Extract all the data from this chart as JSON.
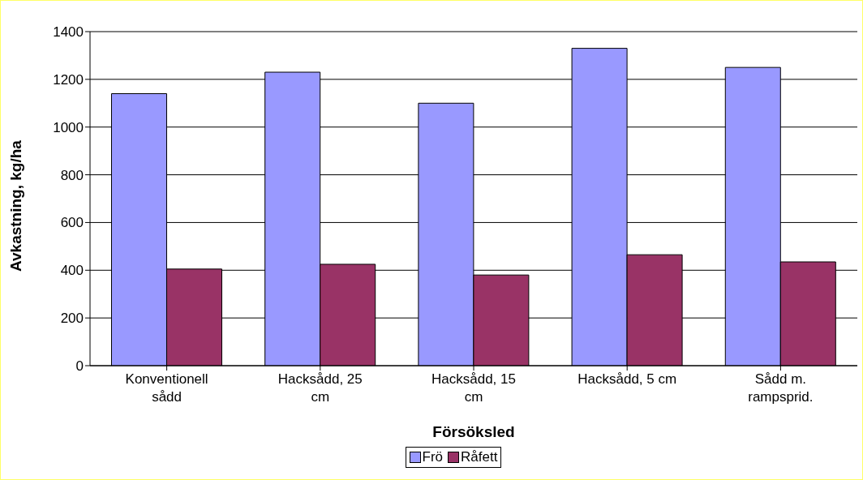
{
  "chart_data": {
    "type": "bar",
    "xlabel": "Försöksled",
    "ylabel": "Avkastning, kg/ha",
    "categories": [
      "Konventionell sådd",
      "Hacksådd, 25 cm",
      "Hacksådd, 15 cm",
      "Hacksådd, 5 cm",
      "Sådd m. rampsprid."
    ],
    "series": [
      {
        "name": "Frö",
        "color": "#9999ff",
        "values": [
          1140,
          1230,
          1100,
          1330,
          1250
        ]
      },
      {
        "name": "Råfett",
        "color": "#993366",
        "values": [
          405,
          425,
          380,
          465,
          435
        ]
      }
    ],
    "ylim": [
      0,
      1400
    ],
    "yticks": [
      0,
      200,
      400,
      600,
      800,
      1000,
      1200,
      1400
    ],
    "grid": "y",
    "legend": "bottom"
  }
}
